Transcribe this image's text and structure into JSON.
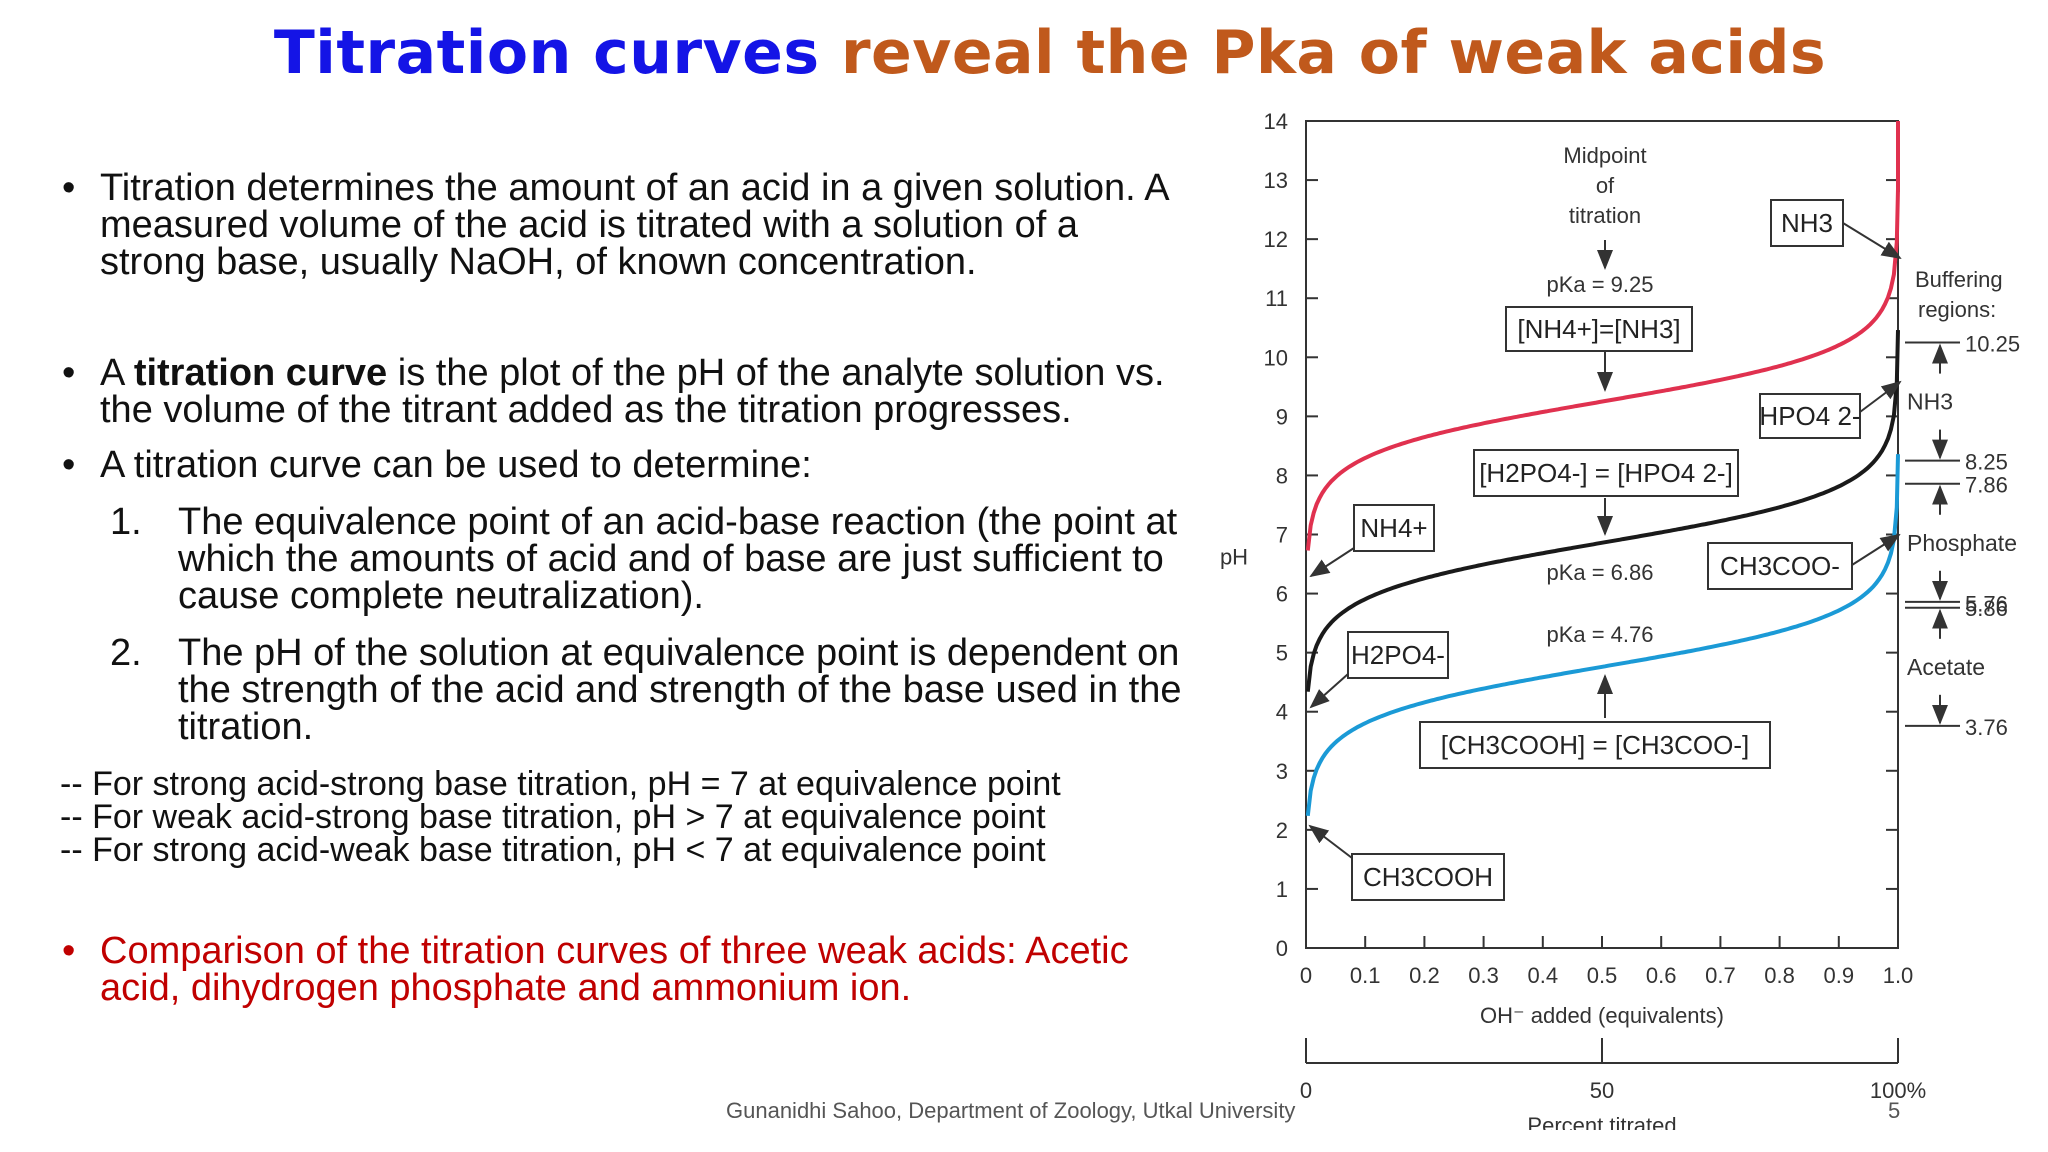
{
  "slide": {
    "title_part1": "Titration curves",
    "title_part2": "reveal the Pka of weak acids",
    "bullet1": "Titration determines the amount of an acid in a given solution. A measured volume of the acid is titrated with a solution of a strong base, usually NaOH, of known concentration.",
    "bullet2_pre": "A ",
    "bullet2_bold": "titration curve",
    "bullet2_post": " is the plot of the pH of the analyte solution vs. the volume of the titrant added as the titration progresses.",
    "bullet3": "A titration curve can be used to determine:",
    "num1_marker": "1.",
    "num1": "The equivalence point of an acid-base reaction (the point at which the amounts of acid and of base are just sufficient to cause complete neutralization).",
    "num2_marker": "2.",
    "num2": "The pH of the solution at equivalence point is dependent on the strength of the acid and strength of the base used in the titration.",
    "dash1": "-- For strong acid-strong base titration, pH = 7 at equivalence point",
    "dash2": "-- For weak acid-strong base titration, pH > 7 at equivalence point",
    "dash3": "-- For strong acid-weak base titration, pH < 7 at equivalence point",
    "bullet4": "Comparison of the titration curves of three weak acids: Acetic acid, dihydrogen phosphate and ammonium ion.",
    "bullet_char": "•",
    "footer_credit": "Gunanidhi Sahoo, Department of Zoology, Utkal University",
    "page_number": "5",
    "colors": {
      "title_blue": "#1414e6",
      "title_orange": "#c0591c",
      "red_text": "#c00000"
    }
  },
  "chart_data": {
    "type": "line",
    "xlabel": "OH⁻ added (equivalents)",
    "ylabel": "pH",
    "xlim": [
      0,
      1.0
    ],
    "ylim": [
      0,
      14
    ],
    "x_ticks": [
      "0",
      "0.1",
      "0.2",
      "0.3",
      "0.4",
      "0.5",
      "0.6",
      "0.7",
      "0.8",
      "0.9",
      "1.0"
    ],
    "y_ticks": [
      "0",
      "1",
      "2",
      "3",
      "4",
      "5",
      "6",
      "7",
      "8",
      "9",
      "10",
      "11",
      "12",
      "13",
      "14"
    ],
    "percent_axis": {
      "label": "Percent titrated",
      "ticks": [
        "0",
        "50",
        "100%"
      ]
    },
    "series": [
      {
        "name": "NH4+ / NH3",
        "pKa": 9.25,
        "color": "#e0314f"
      },
      {
        "name": "H2PO4- / HPO4 2-",
        "pKa": 6.86,
        "color": "#1a1a1a"
      },
      {
        "name": "CH3COOH / CH3COO-",
        "pKa": 4.76,
        "color": "#1b9ad6"
      }
    ],
    "annotations": {
      "midpoint_line1": "Midpoint",
      "midpoint_line2": "of",
      "midpoint_line3": "titration",
      "pka_nh3": "pKa = 9.25",
      "eq_nh3": "[NH4+]=[NH3]",
      "eq_phos": "[H2PO4-] = [HPO4 2-]",
      "pka_phos": "pKa = 6.86",
      "pka_ac": "pKa = 4.76",
      "eq_ac": "[CH3COOH] = [CH3COO-]",
      "box_nh3": "NH3",
      "box_nh4": "NH4+",
      "box_hpo4": "HPO4 2-",
      "box_h2po4": "H2PO4-",
      "box_ch3coo": "CH3COO-",
      "box_ch3cooh": "CH3COOH"
    },
    "buffering": {
      "title_line1": "Buffering",
      "title_line2": "regions:",
      "regions": [
        {
          "name": "NH3",
          "high": "10.25",
          "low": "8.25"
        },
        {
          "name": "Phosphate",
          "high": "7.86",
          "low": "5.86"
        },
        {
          "name": "Acetate",
          "high": "5.76",
          "low": "3.76"
        }
      ]
    }
  }
}
